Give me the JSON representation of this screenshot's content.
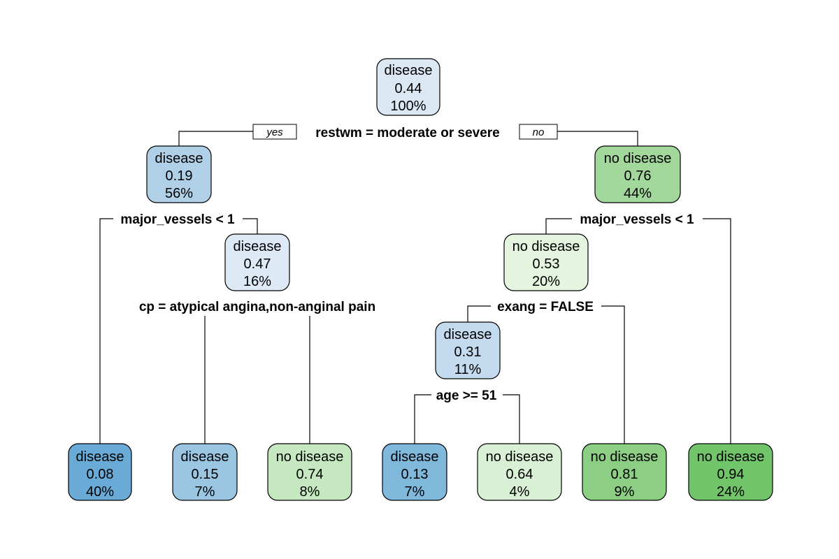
{
  "branch_labels": {
    "yes": "yes",
    "no": "no"
  },
  "splits": {
    "root": "restwm = moderate or severe",
    "left": "major_vessels < 1",
    "left_right": "cp = atypical angina,non-anginal pain",
    "right": "major_vessels < 1",
    "right_left": "exang = FALSE",
    "right_left_left": "age >= 51"
  },
  "nodes": {
    "root": {
      "label": "disease",
      "prob": "0.44",
      "pct": "100%",
      "color": "#dce7f4"
    },
    "n2": {
      "label": "disease",
      "prob": "0.19",
      "pct": "56%",
      "color": "#b0d0e8"
    },
    "n3": {
      "label": "no disease",
      "prob": "0.76",
      "pct": "44%",
      "color": "#a2d89c"
    },
    "n5": {
      "label": "disease",
      "prob": "0.47",
      "pct": "16%",
      "color": "#dde9f5"
    },
    "n6": {
      "label": "no disease",
      "prob": "0.53",
      "pct": "20%",
      "color": "#e4f4df"
    },
    "n12": {
      "label": "disease",
      "prob": "0.31",
      "pct": "11%",
      "color": "#c4daef"
    },
    "leaf4": {
      "label": "disease",
      "prob": "0.08",
      "pct": "40%",
      "color": "#6aaad6"
    },
    "leaf10": {
      "label": "disease",
      "prob": "0.15",
      "pct": "7%",
      "color": "#9ac6e2"
    },
    "leaf11": {
      "label": "no disease",
      "prob": "0.74",
      "pct": "8%",
      "color": "#c6e8c0"
    },
    "leaf24": {
      "label": "disease",
      "prob": "0.13",
      "pct": "7%",
      "color": "#80b8dc"
    },
    "leaf25": {
      "label": "no disease",
      "prob": "0.64",
      "pct": "4%",
      "color": "#d8f0d3"
    },
    "leaf13": {
      "label": "no disease",
      "prob": "0.81",
      "pct": "9%",
      "color": "#8ccf84"
    },
    "leaf7": {
      "label": "no disease",
      "prob": "0.94",
      "pct": "24%",
      "color": "#72c46a"
    }
  }
}
